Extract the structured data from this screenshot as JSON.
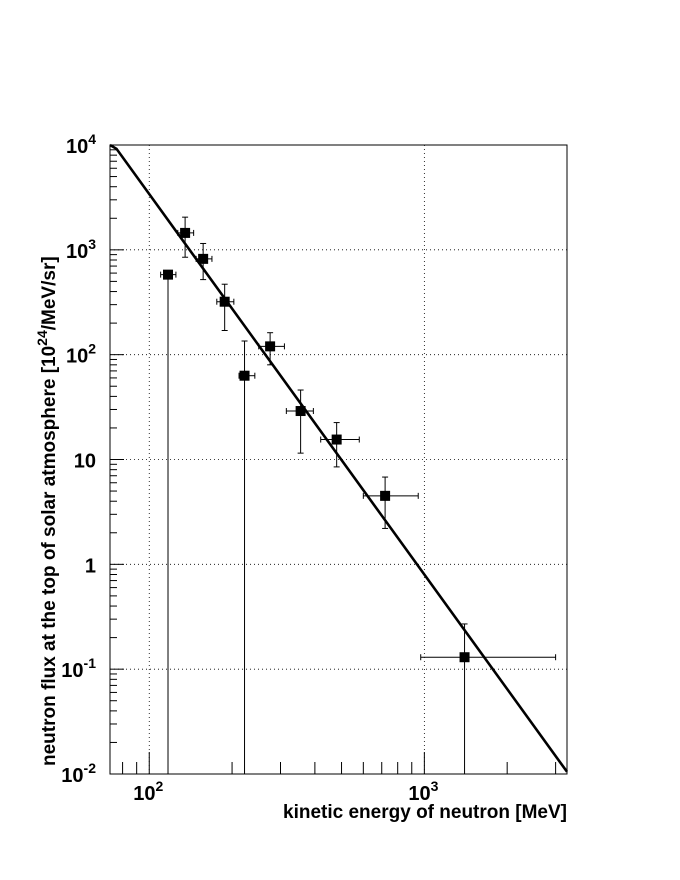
{
  "chart_data": {
    "type": "scatter",
    "xlabel": "kinetic energy of neutron [MeV]",
    "ylabel": "neutron flux at the top of solar atmosphere [10^24/MeV/sr]",
    "x_scale": "log",
    "y_scale": "log",
    "xlim": [
      72,
      3300
    ],
    "ylim": [
      0.01,
      10000
    ],
    "grid": true,
    "x_ticks": [
      {
        "value": 100,
        "base": "10",
        "exp": "2"
      },
      {
        "value": 1000,
        "base": "10",
        "exp": "3"
      }
    ],
    "y_ticks": [
      {
        "value": 0.01,
        "base": "10",
        "exp": "-2"
      },
      {
        "value": 0.1,
        "base": "10",
        "exp": "-1"
      },
      {
        "value": 1,
        "base": "1",
        "exp": ""
      },
      {
        "value": 10,
        "base": "10",
        "exp": ""
      },
      {
        "value": 100,
        "base": "10",
        "exp": "2"
      },
      {
        "value": 1000,
        "base": "10",
        "exp": "3"
      },
      {
        "value": 10000,
        "base": "10",
        "exp": "4"
      }
    ],
    "series": [
      {
        "type": "errorbar",
        "marker": "square",
        "points": [
          {
            "x": 117,
            "y": 580,
            "xerr": [
              7,
              8
            ],
            "yerr": [
              579.99,
              0
            ]
          },
          {
            "x": 135,
            "y": 1450,
            "xerr": [
              8,
              10
            ],
            "yerr": [
              600,
              600
            ]
          },
          {
            "x": 157,
            "y": 820,
            "xerr": [
              9,
              12
            ],
            "yerr": [
              300,
              330
            ]
          },
          {
            "x": 188,
            "y": 320,
            "xerr": [
              12,
              15
            ],
            "yerr": [
              150,
              150
            ]
          },
          {
            "x": 222,
            "y": 63,
            "xerr": [
              10,
              20
            ],
            "yerr": [
              62.99,
              72
            ]
          },
          {
            "x": 275,
            "y": 120,
            "xerr": [
              25,
              35
            ],
            "yerr": [
              40,
              42
            ]
          },
          {
            "x": 355,
            "y": 29,
            "xerr": [
              40,
              40
            ],
            "yerr": [
              17.5,
              17
            ]
          },
          {
            "x": 480,
            "y": 15.5,
            "xerr": [
              60,
              100
            ],
            "yerr": [
              7,
              7
            ]
          },
          {
            "x": 720,
            "y": 4.5,
            "xerr": [
              120,
              230
            ],
            "yerr": [
              2.3,
              2.3
            ]
          },
          {
            "x": 1400,
            "y": 0.13,
            "xerr": [
              430,
              1600
            ],
            "yerr": [
              0.1299,
              0.14
            ]
          }
        ]
      },
      {
        "type": "line",
        "points": [
          {
            "x": 72,
            "y": 10000
          },
          {
            "x": 76,
            "y": 9200
          },
          {
            "x": 3300,
            "y": 0.0105
          }
        ]
      }
    ]
  }
}
